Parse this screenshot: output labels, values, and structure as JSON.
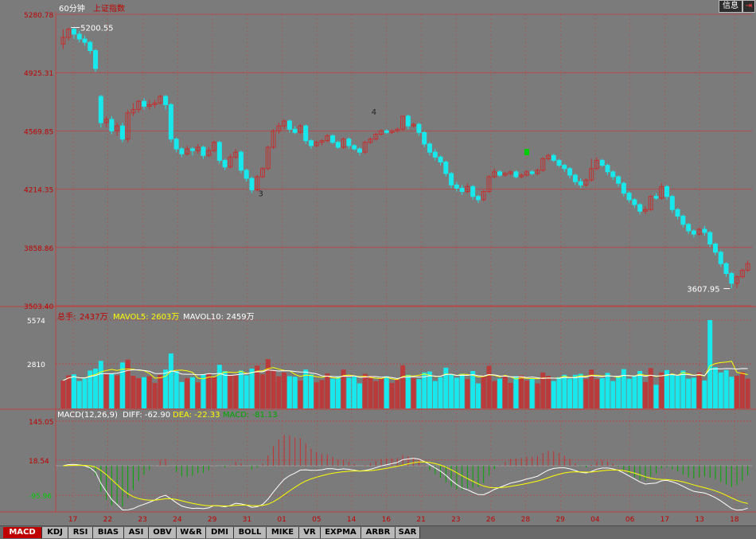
{
  "header": {
    "period": "60分钟",
    "title": "上证指数",
    "btn_info": "信息",
    "btn_exit": "⇥"
  },
  "colors": {
    "background": "#7b7b7b",
    "grid": "#c04040",
    "up": "#c43030",
    "down": "#18e8ec",
    "text_red": "#c00000",
    "mavol5": "#ffff00",
    "mavol10": "#ffffff",
    "dea": "#ffff00",
    "macd": "#00aa00"
  },
  "chart_data": [
    {
      "type": "candlestick",
      "panel": "price",
      "y_ticks": [
        "5280.78",
        "4925.31",
        "4569.85",
        "4214.35",
        "3858.86",
        "3503.40"
      ],
      "ylim": [
        3503.4,
        5280.78
      ],
      "annotations": {
        "high": "5200.55",
        "low": "3607.95",
        "wave3": "3",
        "wave4": "4"
      },
      "grid": true,
      "candles": [
        [
          5100,
          5140,
          5070,
          5190
        ],
        [
          5140,
          5190,
          5120,
          5200
        ],
        [
          5190,
          5160,
          5130,
          5200
        ],
        [
          5160,
          5130,
          5110,
          5180
        ],
        [
          5130,
          5110,
          5090,
          5150
        ],
        [
          5110,
          5060,
          5040,
          5120
        ],
        [
          5060,
          4950,
          4930,
          5070
        ],
        [
          4780,
          4620,
          4590,
          4790
        ],
        [
          4620,
          4640,
          4590,
          4660
        ],
        [
          4640,
          4570,
          4550,
          4660
        ],
        [
          4570,
          4600,
          4540,
          4620
        ],
        [
          4600,
          4520,
          4500,
          4620
        ],
        [
          4520,
          4680,
          4500,
          4700
        ],
        [
          4680,
          4700,
          4660,
          4740
        ],
        [
          4700,
          4750,
          4680,
          4760
        ],
        [
          4750,
          4720,
          4700,
          4770
        ],
        [
          4720,
          4730,
          4700,
          4760
        ],
        [
          4730,
          4740,
          4710,
          4760
        ],
        [
          4740,
          4780,
          4730,
          4790
        ],
        [
          4780,
          4730,
          4700,
          4790
        ],
        [
          4730,
          4520,
          4500,
          4740
        ],
        [
          4520,
          4460,
          4440,
          4530
        ],
        [
          4460,
          4430,
          4410,
          4470
        ],
        [
          4430,
          4460,
          4420,
          4480
        ],
        [
          4460,
          4450,
          4420,
          4470
        ],
        [
          4450,
          4470,
          4430,
          4490
        ],
        [
          4470,
          4420,
          4400,
          4480
        ],
        [
          4420,
          4450,
          4410,
          4470
        ],
        [
          4450,
          4500,
          4440,
          4510
        ],
        [
          4500,
          4390,
          4370,
          4510
        ],
        [
          4390,
          4350,
          4330,
          4400
        ],
        [
          4350,
          4410,
          4340,
          4430
        ],
        [
          4410,
          4440,
          4400,
          4460
        ],
        [
          4440,
          4330,
          4310,
          4450
        ],
        [
          4330,
          4280,
          4260,
          4340
        ],
        [
          4280,
          4210,
          4190,
          4290
        ],
        [
          4210,
          4290,
          4200,
          4300
        ],
        [
          4290,
          4340,
          4280,
          4350
        ],
        [
          4340,
          4470,
          4330,
          4480
        ],
        [
          4470,
          4570,
          4460,
          4580
        ],
        [
          4570,
          4600,
          4550,
          4620
        ],
        [
          4600,
          4630,
          4580,
          4640
        ],
        [
          4630,
          4580,
          4560,
          4640
        ],
        [
          4580,
          4560,
          4550,
          4600
        ],
        [
          4560,
          4600,
          4550,
          4610
        ],
        [
          4600,
          4510,
          4490,
          4610
        ],
        [
          4510,
          4480,
          4460,
          4520
        ],
        [
          4480,
          4500,
          4470,
          4510
        ],
        [
          4500,
          4510,
          4480,
          4520
        ],
        [
          4510,
          4540,
          4500,
          4550
        ],
        [
          4540,
          4500,
          4490,
          4550
        ],
        [
          4500,
          4470,
          4460,
          4510
        ],
        [
          4470,
          4520,
          4460,
          4530
        ],
        [
          4520,
          4480,
          4460,
          4530
        ],
        [
          4480,
          4460,
          4450,
          4490
        ],
        [
          4460,
          4440,
          4420,
          4470
        ],
        [
          4440,
          4500,
          4430,
          4510
        ],
        [
          4500,
          4520,
          4490,
          4530
        ],
        [
          4520,
          4550,
          4510,
          4560
        ],
        [
          4550,
          4570,
          4540,
          4580
        ],
        [
          4570,
          4560,
          4550,
          4580
        ],
        [
          4560,
          4570,
          4550,
          4580
        ],
        [
          4570,
          4580,
          4560,
          4590
        ],
        [
          4580,
          4660,
          4570,
          4660
        ],
        [
          4660,
          4600,
          4580,
          4670
        ],
        [
          4600,
          4610,
          4590,
          4620
        ],
        [
          4610,
          4560,
          4540,
          4620
        ],
        [
          4560,
          4490,
          4470,
          4570
        ],
        [
          4490,
          4440,
          4420,
          4500
        ],
        [
          4440,
          4410,
          4390,
          4460
        ],
        [
          4410,
          4380,
          4360,
          4420
        ],
        [
          4380,
          4310,
          4290,
          4390
        ],
        [
          4310,
          4240,
          4220,
          4320
        ],
        [
          4240,
          4220,
          4200,
          4260
        ],
        [
          4220,
          4200,
          4180,
          4240
        ],
        [
          4200,
          4230,
          4190,
          4250
        ],
        [
          4230,
          4170,
          4150,
          4240
        ],
        [
          4170,
          4150,
          4130,
          4180
        ],
        [
          4150,
          4200,
          4140,
          4210
        ],
        [
          4200,
          4290,
          4190,
          4300
        ],
        [
          4290,
          4320,
          4280,
          4340
        ],
        [
          4320,
          4300,
          4290,
          4330
        ],
        [
          4300,
          4310,
          4290,
          4320
        ],
        [
          4310,
          4320,
          4300,
          4330
        ],
        [
          4320,
          4290,
          4280,
          4330
        ],
        [
          4290,
          4300,
          4280,
          4310
        ],
        [
          4300,
          4320,
          4290,
          4330
        ],
        [
          4320,
          4310,
          4300,
          4330
        ],
        [
          4310,
          4330,
          4300,
          4340
        ],
        [
          4330,
          4400,
          4320,
          4410
        ],
        [
          4400,
          4420,
          4390,
          4430
        ],
        [
          4420,
          4390,
          4380,
          4430
        ],
        [
          4390,
          4360,
          4350,
          4400
        ],
        [
          4360,
          4340,
          4320,
          4370
        ],
        [
          4340,
          4300,
          4280,
          4350
        ],
        [
          4300,
          4260,
          4240,
          4310
        ],
        [
          4260,
          4240,
          4220,
          4280
        ],
        [
          4240,
          4270,
          4230,
          4280
        ],
        [
          4270,
          4340,
          4260,
          4400
        ],
        [
          4340,
          4390,
          4330,
          4410
        ],
        [
          4390,
          4360,
          4350,
          4400
        ],
        [
          4360,
          4320,
          4300,
          4370
        ],
        [
          4320,
          4290,
          4270,
          4330
        ],
        [
          4290,
          4250,
          4230,
          4300
        ],
        [
          4250,
          4190,
          4170,
          4260
        ],
        [
          4190,
          4150,
          4130,
          4200
        ],
        [
          4150,
          4120,
          4100,
          4160
        ],
        [
          4120,
          4080,
          4060,
          4130
        ],
        [
          4080,
          4090,
          4060,
          4110
        ],
        [
          4090,
          4170,
          4080,
          4180
        ],
        [
          4170,
          4160,
          4150,
          4190
        ],
        [
          4160,
          4230,
          4150,
          4250
        ],
        [
          4230,
          4170,
          4150,
          4240
        ],
        [
          4170,
          4090,
          4070,
          4180
        ],
        [
          4090,
          4050,
          4030,
          4100
        ],
        [
          4050,
          4000,
          3980,
          4060
        ],
        [
          4000,
          3960,
          3940,
          4010
        ],
        [
          3960,
          3940,
          3920,
          3970
        ],
        [
          3940,
          3970,
          3930,
          3980
        ],
        [
          3970,
          3950,
          3930,
          3990
        ],
        [
          3950,
          3880,
          3860,
          3960
        ],
        [
          3880,
          3830,
          3810,
          3890
        ],
        [
          3830,
          3760,
          3740,
          3840
        ],
        [
          3760,
          3700,
          3680,
          3770
        ],
        [
          3700,
          3640,
          3610,
          3710
        ],
        [
          3640,
          3680,
          3610,
          3690
        ],
        [
          3680,
          3720,
          3670,
          3730
        ],
        [
          3720,
          3760,
          3710,
          3780
        ]
      ]
    },
    {
      "type": "bar",
      "panel": "volume",
      "legend_vol_label": "总手:",
      "legend_vol_value": "2437万",
      "legend_mavol5": "MAVOL5: 2603万",
      "legend_mavol10": "MAVOL10: 2459万",
      "y_ticks": [
        "5574",
        "2810"
      ],
      "ylim": [
        0,
        5574
      ],
      "grid": true
    },
    {
      "type": "bar+line",
      "panel": "macd",
      "legend_name": "MACD(12,26,9)",
      "legend_diff": "DIFF: -62.90",
      "legend_dea": "DEA: -22.33",
      "legend_macd": "MACD: -81.13",
      "y_ticks": [
        "145.05",
        "18.54",
        "-95.96"
      ],
      "ylim": [
        -150,
        150
      ],
      "x_labels": [
        "17",
        "22",
        "23",
        "24",
        "29",
        "31",
        "01",
        "05",
        "14",
        "16",
        "21",
        "23",
        "26",
        "28",
        "29",
        "04",
        "06",
        "17",
        "13",
        "18"
      ],
      "grid": true
    }
  ],
  "tabs": [
    "MACD",
    "KDJ",
    "RSI",
    "BIAS",
    "ASI",
    "OBV",
    "W&R",
    "DMI",
    "BOLL",
    "MIKE",
    "VR",
    "EXPMA",
    "ARBR",
    "SAR"
  ],
  "active_tab": "MACD"
}
